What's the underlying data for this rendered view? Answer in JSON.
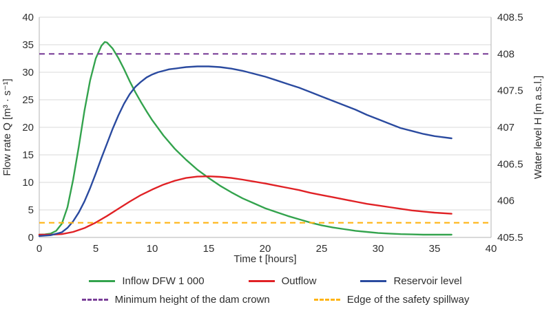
{
  "chart_data": {
    "type": "line",
    "title": "",
    "grid": "horizontal",
    "legend_position": "bottom",
    "x_axis": {
      "label": "Time t [hours]",
      "min": 0,
      "max": 40,
      "ticks": [
        0,
        5,
        10,
        15,
        20,
        25,
        30,
        35,
        40
      ]
    },
    "y_left": {
      "label": "Flow rate Q [m³ · s⁻¹]",
      "min": 0,
      "max": 40,
      "ticks": [
        0,
        5,
        10,
        15,
        20,
        25,
        30,
        35,
        40
      ]
    },
    "y_right": {
      "label": "Water level H [m a.s.l.]",
      "min": 405.5,
      "max": 408.5,
      "ticks": [
        "405.5",
        "406",
        "406.5",
        "407",
        "407.5",
        "408",
        "408.5"
      ]
    },
    "series": [
      {
        "name": "Inflow DFW 1 000",
        "axis": "left",
        "color": "#33a34d",
        "style": "solid",
        "points": [
          [
            0,
            0.5
          ],
          [
            0.5,
            0.55
          ],
          [
            1,
            0.7
          ],
          [
            1.5,
            1.2
          ],
          [
            2,
            2.5
          ],
          [
            2.5,
            5.5
          ],
          [
            3,
            10.5
          ],
          [
            3.5,
            16.5
          ],
          [
            4,
            23
          ],
          [
            4.5,
            28.5
          ],
          [
            5,
            32.5
          ],
          [
            5.5,
            34.8
          ],
          [
            5.8,
            35.5
          ],
          [
            6,
            35.4
          ],
          [
            6.5,
            34.3
          ],
          [
            7,
            32.6
          ],
          [
            7.5,
            30.6
          ],
          [
            8,
            28.4
          ],
          [
            8.5,
            26.4
          ],
          [
            9,
            24.6
          ],
          [
            9.5,
            22.9
          ],
          [
            10,
            21.3
          ],
          [
            11,
            18.5
          ],
          [
            12,
            16.1
          ],
          [
            13,
            14.1
          ],
          [
            14,
            12.3
          ],
          [
            15,
            10.8
          ],
          [
            16,
            9.4
          ],
          [
            17,
            8.2
          ],
          [
            18,
            7.1
          ],
          [
            19,
            6.2
          ],
          [
            20,
            5.3
          ],
          [
            21,
            4.6
          ],
          [
            22,
            3.9
          ],
          [
            23,
            3.3
          ],
          [
            24,
            2.7
          ],
          [
            25,
            2.2
          ],
          [
            26,
            1.8
          ],
          [
            27,
            1.5
          ],
          [
            28,
            1.2
          ],
          [
            29,
            1.0
          ],
          [
            30,
            0.8
          ],
          [
            31,
            0.7
          ],
          [
            32,
            0.6
          ],
          [
            33,
            0.55
          ],
          [
            34,
            0.5
          ],
          [
            35,
            0.5
          ],
          [
            36.5,
            0.5
          ]
        ]
      },
      {
        "name": "Outflow",
        "axis": "left",
        "color": "#e02125",
        "style": "solid",
        "points": [
          [
            0,
            0.5
          ],
          [
            1,
            0.5
          ],
          [
            2,
            0.6
          ],
          [
            3,
            1.0
          ],
          [
            4,
            1.7
          ],
          [
            5,
            2.7
          ],
          [
            6,
            3.9
          ],
          [
            7,
            5.2
          ],
          [
            8,
            6.5
          ],
          [
            9,
            7.7
          ],
          [
            10,
            8.7
          ],
          [
            11,
            9.6
          ],
          [
            12,
            10.3
          ],
          [
            13,
            10.8
          ],
          [
            14,
            11.05
          ],
          [
            15,
            11.1
          ],
          [
            16,
            11.0
          ],
          [
            17,
            10.8
          ],
          [
            18,
            10.5
          ],
          [
            19,
            10.15
          ],
          [
            20,
            9.8
          ],
          [
            21,
            9.4
          ],
          [
            22,
            9.0
          ],
          [
            23,
            8.6
          ],
          [
            24,
            8.1
          ],
          [
            25,
            7.7
          ],
          [
            26,
            7.3
          ],
          [
            27,
            6.9
          ],
          [
            28,
            6.5
          ],
          [
            29,
            6.1
          ],
          [
            30,
            5.8
          ],
          [
            31,
            5.5
          ],
          [
            32,
            5.2
          ],
          [
            33,
            4.9
          ],
          [
            34,
            4.7
          ],
          [
            35,
            4.5
          ],
          [
            36.5,
            4.3
          ]
        ]
      },
      {
        "name": "Reservoir level",
        "axis": "right",
        "color": "#2a4a9f",
        "style": "solid",
        "points": [
          [
            0,
            405.52
          ],
          [
            1,
            405.53
          ],
          [
            2,
            405.57
          ],
          [
            2.5,
            405.63
          ],
          [
            3,
            405.72
          ],
          [
            3.5,
            405.84
          ],
          [
            4,
            405.99
          ],
          [
            4.5,
            406.17
          ],
          [
            5,
            406.37
          ],
          [
            5.5,
            406.58
          ],
          [
            6,
            406.78
          ],
          [
            6.5,
            406.98
          ],
          [
            7,
            407.16
          ],
          [
            7.5,
            407.32
          ],
          [
            8,
            407.45
          ],
          [
            8.5,
            407.55
          ],
          [
            9,
            407.62
          ],
          [
            9.5,
            407.68
          ],
          [
            10,
            407.72
          ],
          [
            10.5,
            407.75
          ],
          [
            11,
            407.77
          ],
          [
            11.5,
            407.79
          ],
          [
            12,
            407.8
          ],
          [
            12.5,
            407.81
          ],
          [
            13,
            407.82
          ],
          [
            14,
            407.83
          ],
          [
            15,
            407.83
          ],
          [
            16,
            407.82
          ],
          [
            17,
            407.8
          ],
          [
            18,
            407.77
          ],
          [
            19,
            407.73
          ],
          [
            20,
            407.69
          ],
          [
            21,
            407.64
          ],
          [
            22,
            407.59
          ],
          [
            23,
            407.54
          ],
          [
            24,
            407.48
          ],
          [
            25,
            407.42
          ],
          [
            26,
            407.36
          ],
          [
            27,
            407.3
          ],
          [
            28,
            407.24
          ],
          [
            29,
            407.17
          ],
          [
            30,
            407.11
          ],
          [
            31,
            407.05
          ],
          [
            32,
            406.99
          ],
          [
            33,
            406.95
          ],
          [
            34,
            406.91
          ],
          [
            35,
            406.88
          ],
          [
            36.5,
            406.85
          ]
        ]
      },
      {
        "name": "Minimum height of the dam crown",
        "axis": "right",
        "color": "#7a3f98",
        "style": "dashed",
        "value": 408.0
      },
      {
        "name": "Edge of the safety spillway",
        "axis": "right",
        "color": "#ffb412",
        "style": "dashed",
        "value": 405.7
      }
    ]
  }
}
